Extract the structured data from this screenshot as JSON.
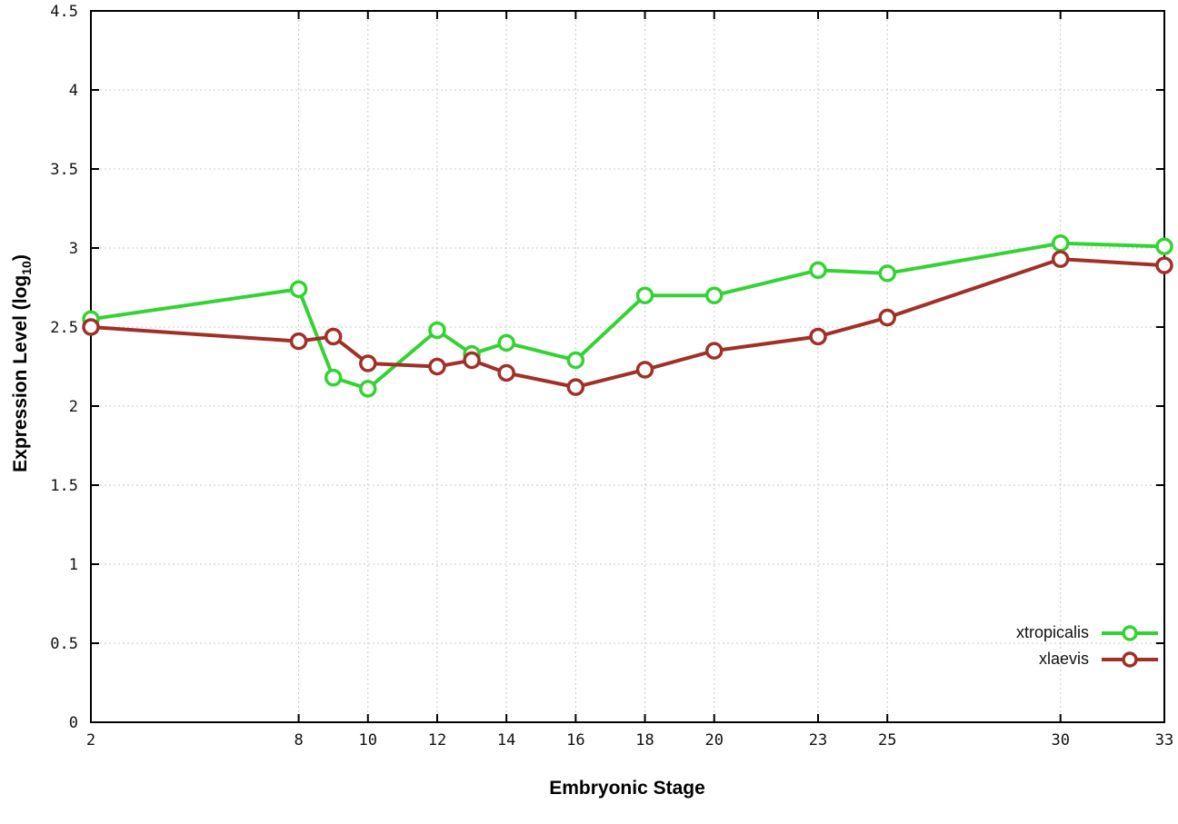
{
  "chart_data": {
    "type": "line",
    "title": "",
    "xlabel": "Embryonic Stage",
    "ylabel": {
      "prefix": "Expression Level (log",
      "sub": "10",
      "suffix": ")"
    },
    "xlim": [
      2,
      33
    ],
    "ylim": [
      0,
      4.5
    ],
    "x_ticks": [
      2,
      8,
      10,
      12,
      14,
      16,
      18,
      20,
      23,
      25,
      30,
      33
    ],
    "y_ticks": [
      0,
      0.5,
      1,
      1.5,
      2,
      2.5,
      3,
      3.5,
      4,
      4.5
    ],
    "grid": true,
    "legend_position": "bottom-right",
    "x": [
      2,
      8,
      9,
      10,
      12,
      13,
      14,
      16,
      18,
      20,
      23,
      25,
      30,
      33
    ],
    "series": [
      {
        "name": "xtropicalis",
        "color": "#33d333",
        "values": [
          2.55,
          2.74,
          2.18,
          2.11,
          2.48,
          2.33,
          2.4,
          2.29,
          2.7,
          2.7,
          2.86,
          2.84,
          3.03,
          3.01
        ]
      },
      {
        "name": "xlaevis",
        "color": "#a03028",
        "values": [
          2.5,
          2.41,
          2.44,
          2.27,
          2.25,
          2.29,
          2.21,
          2.12,
          2.23,
          2.35,
          2.44,
          2.56,
          2.93,
          2.89
        ]
      }
    ]
  }
}
